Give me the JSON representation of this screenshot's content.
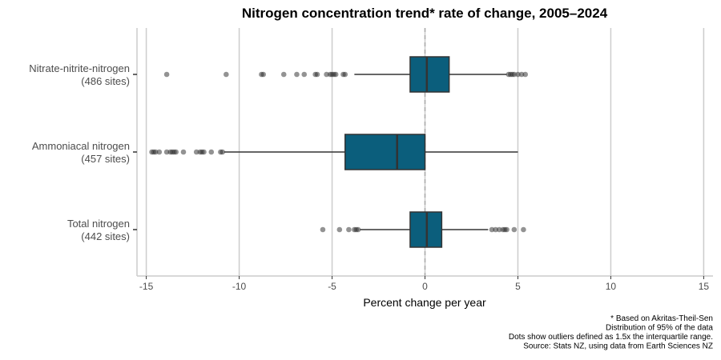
{
  "chart_data": {
    "type": "boxplot",
    "title": "Nitrogen concentration trend* rate of change, 2005–2024",
    "xlabel": "Percent change per year",
    "xlim": [
      -15.5,
      15.5
    ],
    "x_ticks": [
      -15,
      -10,
      -5,
      0,
      5,
      10,
      15
    ],
    "x_tick_labels": [
      "-15",
      "-10",
      "-5",
      "0",
      "5",
      "10",
      "15"
    ],
    "grid": "vertical major gridlines",
    "reference_line": {
      "x": 0,
      "style": "dashed"
    },
    "box_color": "#0b5e7c",
    "categories": [
      {
        "label_line1": "Nitrate-nitrite-nitrogen",
        "label_line2": "(486 sites)",
        "whisker_low": -3.8,
        "q1": -0.8,
        "median": 0.1,
        "q3": 1.3,
        "whisker_high": 4.4,
        "outliers": [
          -13.9,
          -10.7,
          -8.8,
          -8.7,
          -7.6,
          -6.9,
          -6.5,
          -5.9,
          -5.8,
          -5.3,
          -5.1,
          -5.0,
          -4.9,
          -4.8,
          -4.4,
          -4.3,
          4.5,
          4.6,
          4.7,
          4.8,
          5.0,
          5.2,
          5.4
        ]
      },
      {
        "label_line1": "Ammoniacal nitrogen",
        "label_line2": "(457 sites)",
        "whisker_low": -10.8,
        "q1": -4.3,
        "median": -1.5,
        "q3": 0.0,
        "whisker_high": 5.0,
        "outliers": [
          -14.7,
          -14.6,
          -14.5,
          -14.3,
          -13.9,
          -13.7,
          -13.6,
          -13.5,
          -13.4,
          -13.0,
          -12.3,
          -12.1,
          -12.0,
          -11.9,
          -11.5,
          -11.0,
          -10.9
        ]
      },
      {
        "label_line1": "Total nitrogen",
        "label_line2": "(442 sites)",
        "whisker_low": -3.5,
        "q1": -0.8,
        "median": 0.1,
        "q3": 0.9,
        "whisker_high": 3.4,
        "outliers": [
          -5.5,
          -4.6,
          -4.1,
          -3.8,
          -3.7,
          -3.6,
          3.6,
          3.8,
          4.0,
          4.2,
          4.3,
          4.4,
          4.8,
          5.3
        ]
      }
    ],
    "notes": [
      "* Based on Akritas-Theil-Sen",
      "Distribution of 95% of the data",
      "Dots show outliers defined as 1.5x the interquartile range.",
      "Source: Stats NZ, using data from Earth Sciences NZ"
    ]
  }
}
